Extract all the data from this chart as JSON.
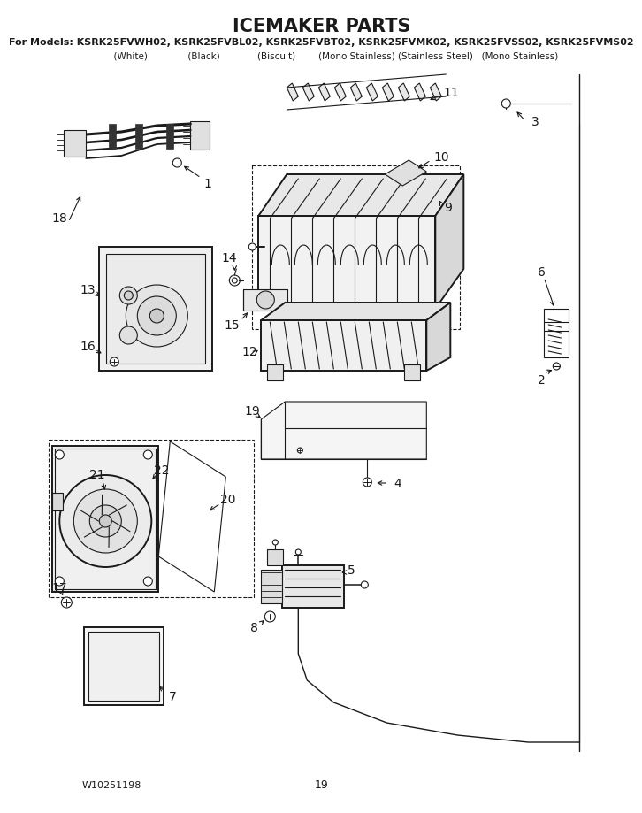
{
  "title": "ICEMAKER PARTS",
  "models_line1": "For Models: KSRK25FVWH02, KSRK25FVBL02, KSRK25FVBT02, KSRK25FVMK02, KSRK25FVSS02, KSRK25FVMS02",
  "models_line2": "          (White)              (Black)             (Biscuit)        (Mono Stainless) (Stainless Steel)   (Mono Stainless)",
  "footer_left": "W10251198",
  "footer_center": "19",
  "bg_color": "#ffffff",
  "lc": "#1a1a1a",
  "title_fs": 15,
  "model_fs": 8,
  "label_fs": 10
}
